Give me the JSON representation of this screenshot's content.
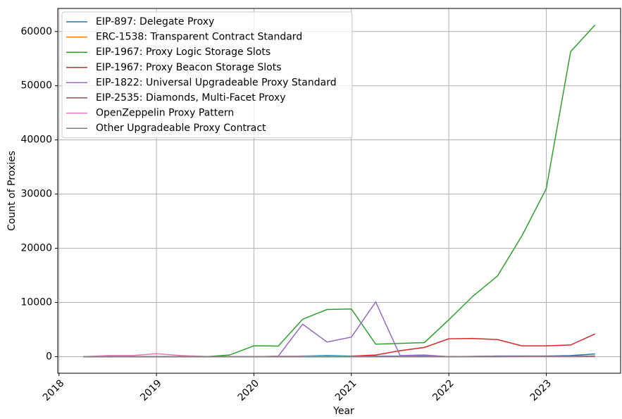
{
  "chart_data": {
    "type": "line",
    "x": [
      2018.25,
      2018.5,
      2018.75,
      2019,
      2019.25,
      2019.5,
      2019.75,
      2020,
      2020.25,
      2020.5,
      2020.75,
      2021,
      2021.25,
      2021.5,
      2021.75,
      2022,
      2022.25,
      2022.5,
      2022.75,
      2023,
      2023.25,
      2023.5
    ],
    "series": [
      {
        "name": " EIP-897: Delegate Proxy",
        "color": "#1f77b4",
        "values": [
          0,
          0,
          0,
          0,
          0,
          0,
          0,
          0,
          50,
          100,
          200,
          100,
          100,
          100,
          100,
          0,
          50,
          100,
          100,
          100,
          200,
          500
        ]
      },
      {
        "name": "ERC-1538: Transparent Contract Standard",
        "color": "#ff7f0e",
        "values": [
          0,
          0,
          0,
          0,
          0,
          0,
          0,
          0,
          0,
          0,
          0,
          0,
          0,
          0,
          0,
          0,
          0,
          0,
          0,
          0,
          0,
          0
        ]
      },
      {
        "name": " EIP-1967: Proxy Logic Storage Slots",
        "color": "#2ca02c",
        "values": [
          0,
          0,
          0,
          0,
          0,
          0,
          300,
          2000,
          1950,
          6900,
          8700,
          8800,
          2300,
          2450,
          2600,
          6800,
          11200,
          14900,
          22300,
          31000,
          56300,
          61200
        ]
      },
      {
        "name": "EIP-1967: Proxy Beacon Storage Slots",
        "color": "#d62728",
        "values": [
          0,
          0,
          0,
          0,
          0,
          0,
          0,
          0,
          0,
          0,
          0,
          100,
          300,
          1100,
          1700,
          3300,
          3350,
          3150,
          2000,
          2000,
          2150,
          4200
        ]
      },
      {
        "name": " EIP-1822: Universal Upgradeable Proxy Standard",
        "color": "#9467bd",
        "values": [
          0,
          0,
          0,
          0,
          0,
          0,
          0,
          0,
          100,
          6000,
          2700,
          3600,
          10100,
          200,
          300,
          0,
          50,
          100,
          100,
          100,
          100,
          100
        ]
      },
      {
        "name": " EIP-2535: Diamonds, Multi-Facet Proxy",
        "color": "#8c564b",
        "values": [
          0,
          0,
          0,
          0,
          0,
          0,
          0,
          0,
          0,
          0,
          0,
          0,
          0,
          0,
          0,
          0,
          0,
          0,
          50,
          50,
          50,
          100
        ]
      },
      {
        "name": "OpenZeppelin Proxy Pattern",
        "color": "#e377c2",
        "values": [
          0,
          200,
          200,
          550,
          200,
          50,
          0,
          0,
          50,
          100,
          100,
          50,
          50,
          50,
          50,
          0,
          0,
          0,
          0,
          0,
          0,
          0
        ]
      },
      {
        "name": "Other Upgradeable Proxy Contract",
        "color": "#7f7f7f",
        "values": [
          0,
          0,
          0,
          0,
          0,
          0,
          0,
          0,
          0,
          0,
          0,
          0,
          0,
          0,
          0,
          0,
          0,
          0,
          50,
          50,
          50,
          50
        ]
      }
    ],
    "xlabel": "Year",
    "ylabel": "Count of Proxies",
    "xlim": [
      2017.9875,
      2023.7625
    ],
    "xticks": [
      2018,
      2019,
      2020,
      2021,
      2022,
      2023
    ],
    "ylim": [
      -3060,
      64260
    ],
    "yticks": [
      0,
      10000,
      20000,
      30000,
      40000,
      50000,
      60000
    ],
    "grid": true,
    "legend": "upper left"
  }
}
